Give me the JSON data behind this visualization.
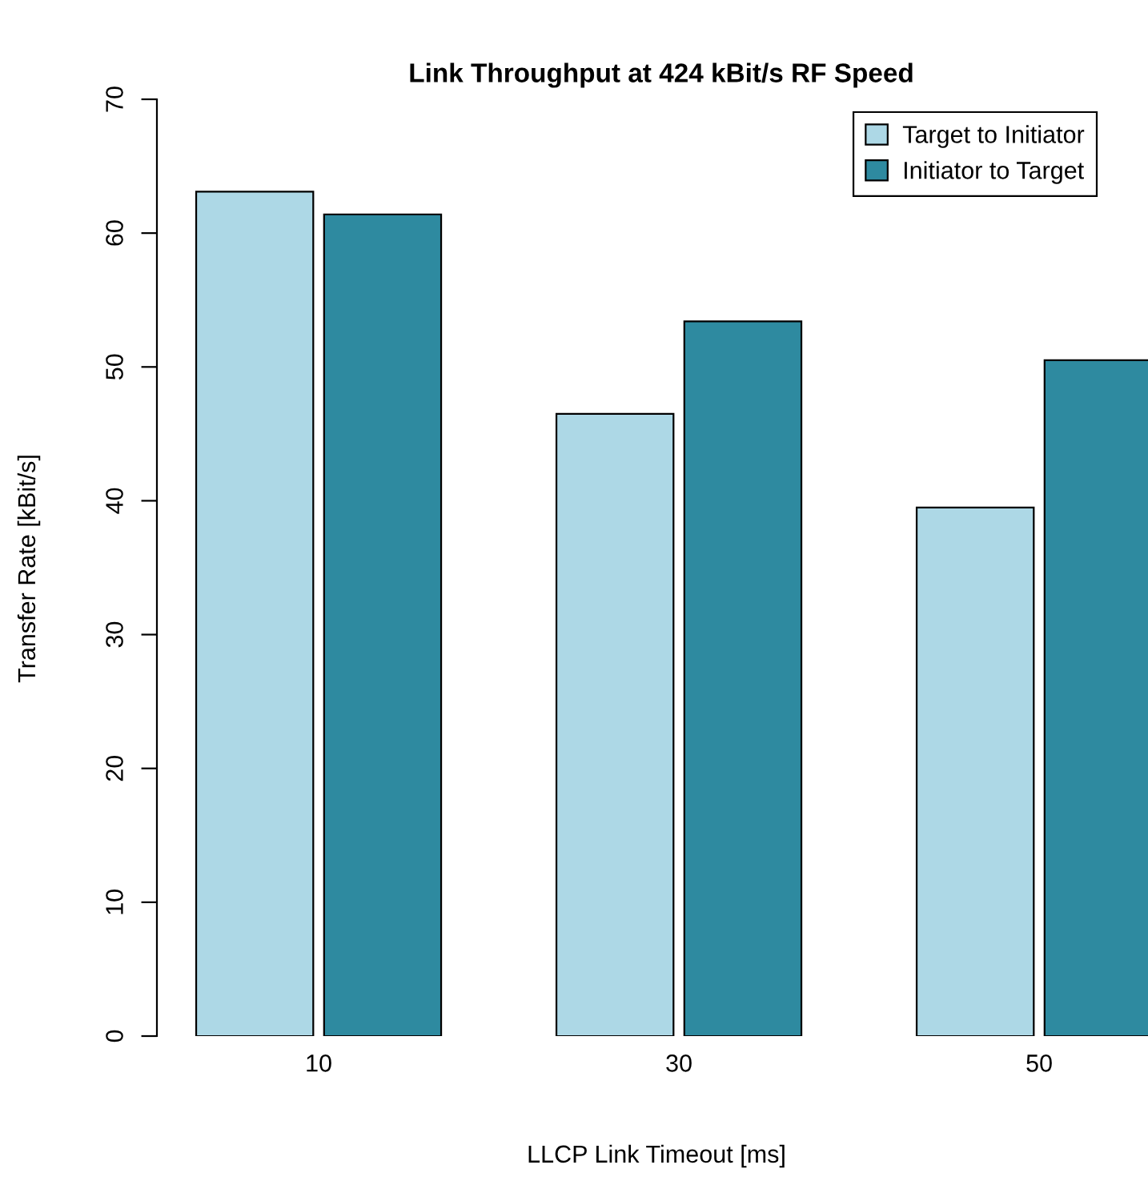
{
  "chart_data": {
    "type": "bar",
    "title": "Link Throughput at 424 kBit/s RF Speed",
    "xlabel": "LLCP Link Timeout [ms]",
    "ylabel": "Transfer Rate [kBit/s]",
    "categories": [
      "10",
      "30",
      "50"
    ],
    "series": [
      {
        "name": "Target to Initiator",
        "color": "#add8e6",
        "values": [
          63.1,
          46.5,
          39.5
        ]
      },
      {
        "name": "Initiator to Target",
        "color": "#2e8aa0",
        "values": [
          61.4,
          53.4,
          50.5
        ]
      }
    ],
    "ylim": [
      0,
      70
    ],
    "yticks": [
      0,
      10,
      20,
      30,
      40,
      50,
      60,
      70
    ],
    "legend": "top right"
  }
}
